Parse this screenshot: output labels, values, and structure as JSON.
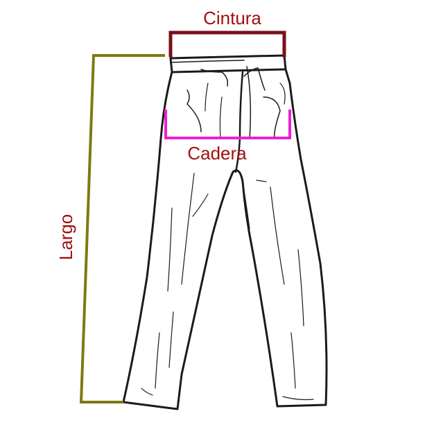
{
  "labels": {
    "waist": "Cintura",
    "hip": "Cadera",
    "length": "Largo"
  },
  "colors": {
    "waist_bracket": "#7a0f18",
    "hip_bracket": "#ee1fd0",
    "length_bracket": "#7d7a11",
    "label_text": "#a01010",
    "outline": "#1a1a1a"
  },
  "illustration": "pants-line-drawing"
}
